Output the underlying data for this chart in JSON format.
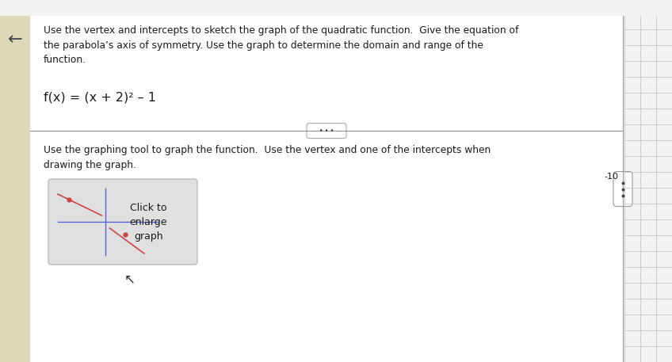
{
  "title_text": "Use the vertex and intercepts to sketch the graph of the quadratic function.  Give the equation of\nthe parabola’s axis of symmetry. Use the graph to determine the domain and range of the\nfunction.",
  "function_text": "f(x) = (x + 2)² – 1",
  "instruction_text": "Use the graphing tool to graph the function.  Use the vertex and one of the intercepts when\ndrawing the graph.",
  "click_text": "Click to\nenlarge\ngraph",
  "label_10": "-10",
  "bg_main": "#f2f2f0",
  "white_bg": "#ffffff",
  "blue_top": "#3b8bbf",
  "text_color": "#1a1a1a",
  "thumbnail_bg": "#e0e0e0",
  "thumb_border": "#bbbbbb",
  "line_dark": "#5566cc",
  "line_red": "#cc4444",
  "sidebar_line": "#999999",
  "sidebar_grid": "#bbbbbb",
  "left_strip_color": "#ddd9b8",
  "divider_color": "#888888",
  "dots_color": "#333333",
  "cursor_color": "#333333"
}
